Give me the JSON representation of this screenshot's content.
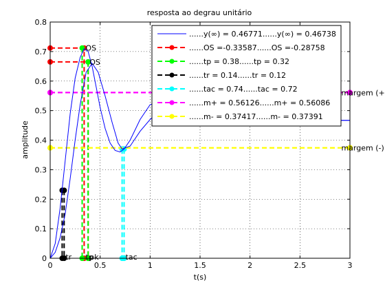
{
  "chart_data": {
    "type": "line",
    "title": "resposta ao degrau unitário",
    "xlabel": "t(s)",
    "ylabel": "amplitude",
    "xlim": [
      0,
      3
    ],
    "ylim": [
      0,
      0.8
    ],
    "x_ticks": [
      0,
      0.5,
      1,
      1.5,
      2,
      2.5,
      3
    ],
    "y_ticks": [
      0,
      0.1,
      0.2,
      0.3,
      0.4,
      0.5,
      0.6,
      0.7,
      0.8
    ],
    "x_tick_labels": [
      "0",
      "0.5",
      "1",
      "1.5",
      "2",
      "2.5",
      "3"
    ],
    "y_tick_labels": [
      "0",
      "0.1",
      "0.2",
      "0.3",
      "0.4",
      "0.5",
      "0.6",
      "0.7",
      "0.8"
    ],
    "grid": true,
    "legend_position": "top-right",
    "series": [
      {
        "name": "......y(∞) = 0.46771......y(∞) = 0.46738",
        "color": "#0000ff",
        "style": "solid",
        "x": [
          0,
          0.05,
          0.1,
          0.15,
          0.2,
          0.25,
          0.3,
          0.34,
          0.38,
          0.42,
          0.46,
          0.5,
          0.55,
          0.6,
          0.65,
          0.7,
          0.74,
          0.8,
          0.9,
          1.0,
          1.1,
          1.2,
          1.3,
          1.4,
          1.5,
          1.6,
          1.7,
          1.8,
          1.9,
          2.0,
          2.2,
          2.4,
          2.6,
          2.8,
          3.0
        ],
        "y": [
          0,
          0.05,
          0.17,
          0.33,
          0.49,
          0.61,
          0.68,
          0.71,
          0.7,
          0.65,
          0.58,
          0.51,
          0.44,
          0.39,
          0.365,
          0.36,
          0.37,
          0.4,
          0.47,
          0.52,
          0.53,
          0.51,
          0.48,
          0.455,
          0.45,
          0.46,
          0.475,
          0.48,
          0.475,
          0.468,
          0.466,
          0.468,
          0.468,
          0.467,
          0.467
        ]
      },
      {
        "name": "",
        "color": "#0000ff",
        "style": "solid",
        "x": [
          0,
          0.05,
          0.1,
          0.15,
          0.2,
          0.25,
          0.3,
          0.36,
          0.42,
          0.48,
          0.55,
          0.62,
          0.68,
          0.72,
          0.8,
          0.9,
          1.0,
          1.1,
          1.2,
          1.3,
          1.4,
          1.5,
          1.6,
          1.7,
          1.8,
          1.9,
          2.0,
          2.2,
          2.4,
          2.6,
          2.8,
          3.0
        ],
        "y": [
          0,
          0.02,
          0.07,
          0.15,
          0.27,
          0.4,
          0.52,
          0.63,
          0.66,
          0.63,
          0.55,
          0.46,
          0.39,
          0.37,
          0.38,
          0.43,
          0.47,
          0.5,
          0.51,
          0.5,
          0.48,
          0.46,
          0.455,
          0.46,
          0.465,
          0.47,
          0.468,
          0.466,
          0.467,
          0.468,
          0.467,
          0.467
        ]
      }
    ],
    "markers": [
      {
        "name": "......OS =-0.33587......OS =-0.28758",
        "color": "#ff0000",
        "segments": [
          [
            [
              0,
              0.712
            ],
            [
              0.34,
              0.712
            ],
            [
              0.34,
              0
            ]
          ],
          [
            [
              0,
              0.665
            ],
            [
              0.38,
              0.665
            ],
            [
              0.38,
              0
            ]
          ]
        ]
      },
      {
        "name": "......tp =    0.38......tp =    0.32",
        "color": "#00ff00",
        "segments": [
          [
            [
              0.32,
              0.712
            ],
            [
              0.32,
              0
            ]
          ],
          [
            [
              0.38,
              0.665
            ],
            [
              0.38,
              0
            ]
          ]
        ]
      },
      {
        "name": "......tr =    0.14......tr =    0.12",
        "color": "#000000",
        "segments": [
          [
            [
              0.12,
              0.23
            ],
            [
              0.12,
              0
            ]
          ],
          [
            [
              0.14,
              0.23
            ],
            [
              0.14,
              0
            ]
          ]
        ]
      },
      {
        "name": "......tac =    0.74......tac =    0.72",
        "color": "#00ffff",
        "segments": [
          [
            [
              0.72,
              0.37
            ],
            [
              0.72,
              0
            ]
          ],
          [
            [
              0.74,
              0.37
            ],
            [
              0.74,
              0
            ]
          ]
        ]
      },
      {
        "name": "......m+ = 0.56126......m+ = 0.56086",
        "color": "#ff00ff",
        "segments": [
          [
            [
              0,
              0.5613
            ],
            [
              3,
              0.5613
            ]
          ],
          [
            [
              0,
              0.5609
            ],
            [
              3,
              0.5609
            ]
          ]
        ]
      },
      {
        "name": "......m- = 0.37417......m- = 0.37391",
        "color": "#ffff00",
        "segments": [
          [
            [
              0,
              0.3742
            ],
            [
              3,
              0.3742
            ]
          ],
          [
            [
              0,
              0.3739
            ],
            [
              3,
              0.3739
            ]
          ]
        ]
      }
    ],
    "annotations": [
      {
        "text": "OS",
        "x": 0.34,
        "y": 0.712
      },
      {
        "text": "OS",
        "x": 0.38,
        "y": 0.665
      },
      {
        "text": "margem (+)",
        "x": 2.9,
        "y": 0.561
      },
      {
        "text": "margem (-)",
        "x": 2.9,
        "y": 0.374
      },
      {
        "text": "tr",
        "x": 0.14,
        "y": 0
      },
      {
        "text": "tp",
        "x": 0.34,
        "y": 0
      },
      {
        "text": "pk",
        "x": 0.38,
        "y": 0
      },
      {
        "text": "tac",
        "x": 0.74,
        "y": 0
      }
    ]
  }
}
